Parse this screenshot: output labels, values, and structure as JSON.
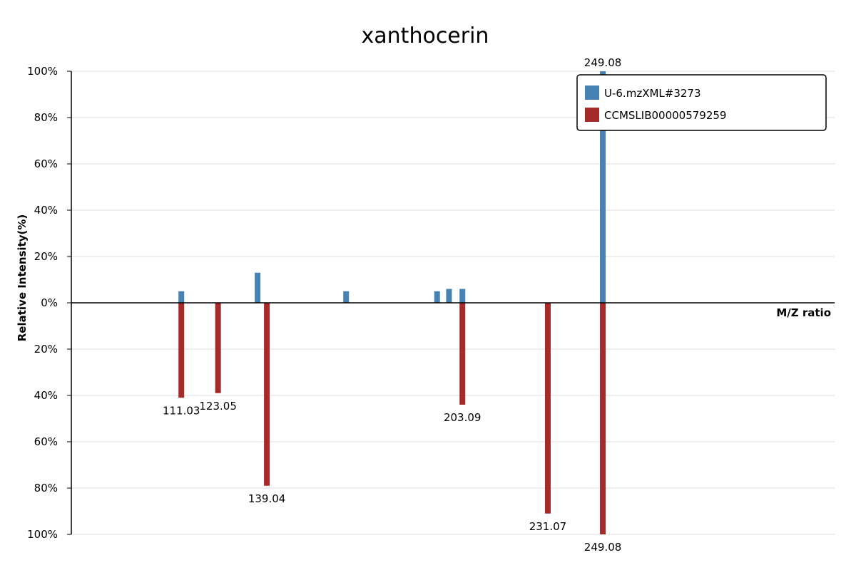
{
  "chart_data": {
    "type": "bar",
    "subtype": "mirror-mass-spectrum",
    "title": "xanthocerin",
    "xlabel": "M/Z ratio",
    "ylabel": "Relative Intensity(%)",
    "xlim": [
      75,
      325
    ],
    "ylim": [
      -100,
      100
    ],
    "yticks": [
      {
        "value": 100,
        "label": "100%"
      },
      {
        "value": 80,
        "label": "80%"
      },
      {
        "value": 60,
        "label": "60%"
      },
      {
        "value": 40,
        "label": "40%"
      },
      {
        "value": 20,
        "label": "20%"
      },
      {
        "value": 0,
        "label": "0%"
      },
      {
        "value": -20,
        "label": "20%"
      },
      {
        "value": -40,
        "label": "40%"
      },
      {
        "value": -60,
        "label": "60%"
      },
      {
        "value": -80,
        "label": "80%"
      },
      {
        "value": -100,
        "label": "100%"
      }
    ],
    "legend_position": "top-right",
    "series": [
      {
        "name": "U-6.mzXML#3273",
        "color": "#4682b4",
        "direction": "up",
        "peaks": [
          {
            "mz": 111.03,
            "intensity": 5,
            "label": ""
          },
          {
            "mz": 136.0,
            "intensity": 13,
            "label": ""
          },
          {
            "mz": 165.0,
            "intensity": 5,
            "label": ""
          },
          {
            "mz": 194.8,
            "intensity": 5,
            "label": ""
          },
          {
            "mz": 198.7,
            "intensity": 6,
            "label": ""
          },
          {
            "mz": 203.09,
            "intensity": 6,
            "label": ""
          },
          {
            "mz": 249.08,
            "intensity": 100,
            "label": "249.08"
          }
        ]
      },
      {
        "name": "CCMSLIB00000579259",
        "color": "#a52a2a",
        "direction": "down",
        "peaks": [
          {
            "mz": 111.03,
            "intensity": 41,
            "label": "111.03"
          },
          {
            "mz": 123.05,
            "intensity": 39,
            "label": "123.05"
          },
          {
            "mz": 139.04,
            "intensity": 79,
            "label": "139.04"
          },
          {
            "mz": 203.09,
            "intensity": 44,
            "label": "203.09"
          },
          {
            "mz": 231.07,
            "intensity": 91,
            "label": "231.07"
          },
          {
            "mz": 249.08,
            "intensity": 100,
            "label": "249.08"
          }
        ]
      }
    ]
  }
}
